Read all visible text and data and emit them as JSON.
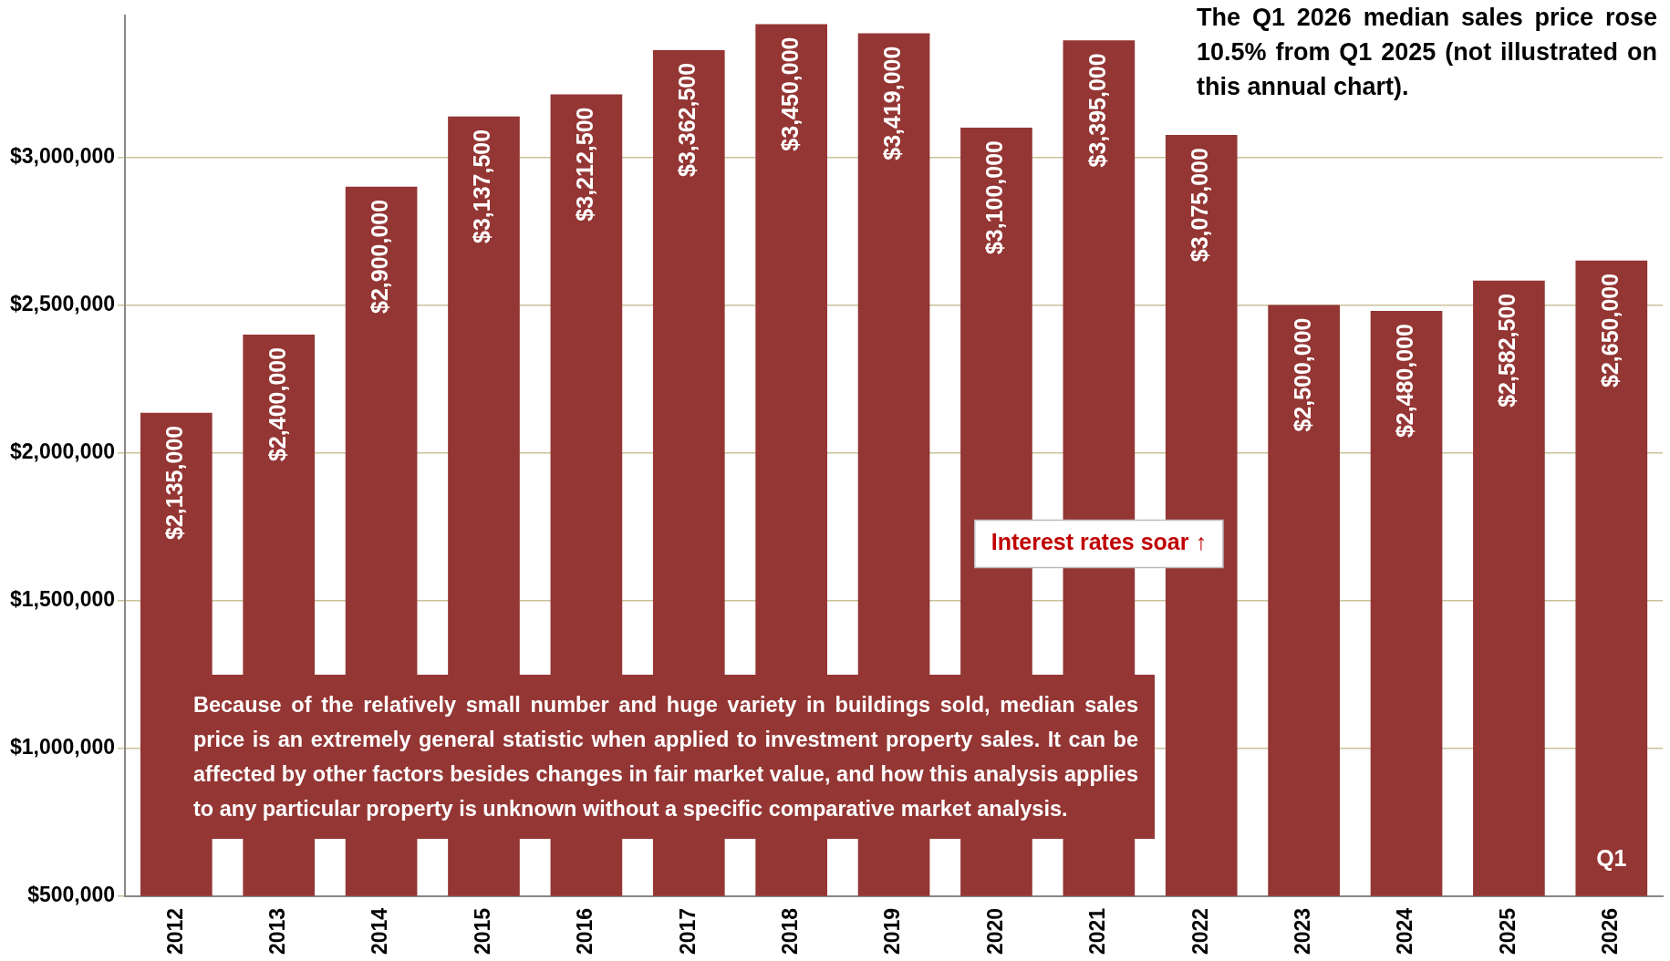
{
  "chart_data": {
    "type": "bar",
    "categories": [
      "2012",
      "2013",
      "2014",
      "2015",
      "2016",
      "2017",
      "2018",
      "2019",
      "2020",
      "2021",
      "2022",
      "2023",
      "2024",
      "2025",
      "2026"
    ],
    "values": [
      2135000,
      2400000,
      2900000,
      3137500,
      3212500,
      3362500,
      3450000,
      3419000,
      3100000,
      3395000,
      3075000,
      2500000,
      2480000,
      2582500,
      2650000
    ],
    "color": "#943634",
    "ylim": [
      500000,
      3480000
    ],
    "yticks": [
      {
        "value": 500000,
        "label": "$500,000"
      },
      {
        "value": 1000000,
        "label": "$1,000,000"
      },
      {
        "value": 1500000,
        "label": "$1,500,000"
      },
      {
        "value": 2000000,
        "label": "$2,000,000"
      },
      {
        "value": 2500000,
        "label": "$2,500,000"
      },
      {
        "value": 3000000,
        "label": "$3,000,000"
      }
    ],
    "grid": "y",
    "data_labels": true,
    "value_labels": [
      "$2,135,000",
      "$2,400,000",
      "$2,900,000",
      "$3,137,500",
      "$3,212,500",
      "$3,362,500",
      "$3,450,000",
      "$3,419,000",
      "$3,100,000",
      "$3,395,000",
      "$3,075,000",
      "$2,500,000",
      "$2,480,000",
      "$2,582,500",
      "$2,650,000"
    ],
    "annotations": [
      "The Q1 2026 median sales price rose 10.5% from Q1 2025 (not illustrated on this annual chart).",
      "Because of the relatively small number and huge variety in buildings sold, median sales price is an extremely general statistic when applied to investment property sales. It can be affected by other factors besides changes in fair market value, and how this analysis applies to any particular property is unknown without a specific comparative market analysis.",
      "Interest rates soar ↑",
      "Q1"
    ]
  }
}
